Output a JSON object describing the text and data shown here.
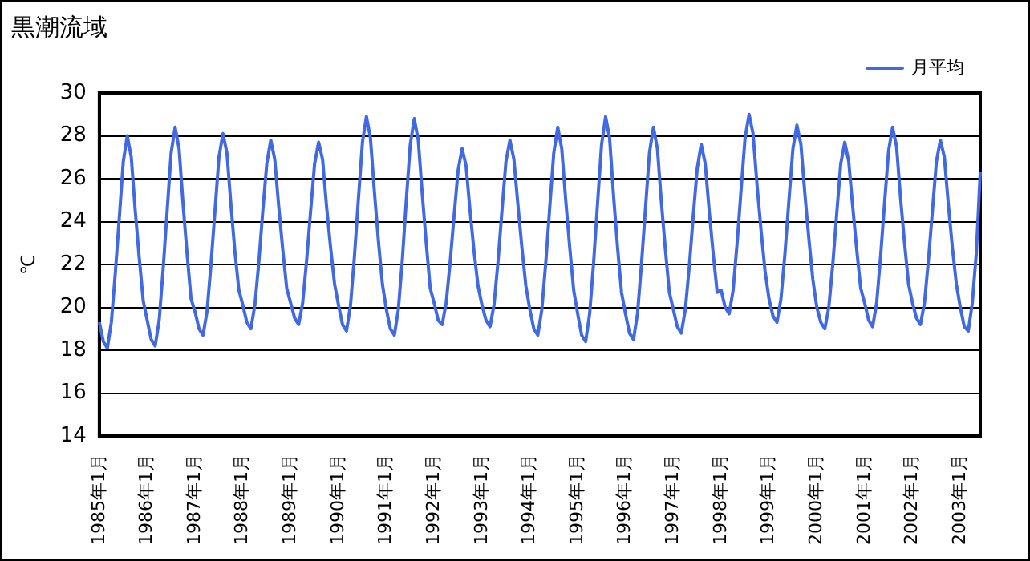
{
  "chart_data": {
    "type": "line",
    "title": "黒潮流域",
    "ylabel": "℃",
    "categories": [
      "1985年1月",
      null,
      null,
      null,
      null,
      null,
      null,
      null,
      null,
      null,
      null,
      null,
      "1986年1月",
      null,
      null,
      null,
      null,
      null,
      null,
      null,
      null,
      null,
      null,
      null,
      "1987年1月",
      null,
      null,
      null,
      null,
      null,
      null,
      null,
      null,
      null,
      null,
      null,
      "1988年1月",
      null,
      null,
      null,
      null,
      null,
      null,
      null,
      null,
      null,
      null,
      null,
      "1989年1月",
      null,
      null,
      null,
      null,
      null,
      null,
      null,
      null,
      null,
      null,
      null,
      "1990年1月",
      null,
      null,
      null,
      null,
      null,
      null,
      null,
      null,
      null,
      null,
      null,
      "1991年1月",
      null,
      null,
      null,
      null,
      null,
      null,
      null,
      null,
      null,
      null,
      null,
      "1992年1月",
      null,
      null,
      null,
      null,
      null,
      null,
      null,
      null,
      null,
      null,
      null,
      "1993年1月",
      null,
      null,
      null,
      null,
      null,
      null,
      null,
      null,
      null,
      null,
      null,
      "1994年1月",
      null,
      null,
      null,
      null,
      null,
      null,
      null,
      null,
      null,
      null,
      null,
      "1995年1月",
      null,
      null,
      null,
      null,
      null,
      null,
      null,
      null,
      null,
      null,
      null,
      "1996年1月",
      null,
      null,
      null,
      null,
      null,
      null,
      null,
      null,
      null,
      null,
      null,
      "1997年1月",
      null,
      null,
      null,
      null,
      null,
      null,
      null,
      null,
      null,
      null,
      null,
      "1998年1月",
      null,
      null,
      null,
      null,
      null,
      null,
      null,
      null,
      null,
      null,
      null,
      "1999年1月",
      null,
      null,
      null,
      null,
      null,
      null,
      null,
      null,
      null,
      null,
      null,
      "2000年1月",
      null,
      null,
      null,
      null,
      null,
      null,
      null,
      null,
      null,
      null,
      null,
      "2001年1月",
      null,
      null,
      null,
      null,
      null,
      null,
      null,
      null,
      null,
      null,
      null,
      "2002年1月",
      null,
      null,
      null,
      null,
      null,
      null,
      null,
      null,
      null,
      null,
      null,
      "2003年1月",
      null,
      null,
      null,
      null,
      null
    ],
    "series": [
      {
        "name": "月平均",
        "color": "#4169e1",
        "values": [
          19.3,
          18.4,
          18.1,
          19.3,
          21.6,
          24.2,
          26.8,
          28.0,
          27.0,
          24.5,
          22.3,
          20.3,
          19.4,
          18.5,
          18.2,
          19.4,
          21.8,
          24.5,
          27.2,
          28.4,
          27.4,
          24.8,
          22.5,
          20.4,
          19.8,
          19.0,
          18.7,
          19.8,
          22.0,
          24.5,
          27.0,
          28.1,
          27.2,
          24.8,
          22.6,
          20.8,
          20.1,
          19.3,
          19.0,
          20.1,
          22.1,
          24.5,
          26.7,
          27.8,
          26.9,
          24.7,
          22.7,
          20.9,
          20.2,
          19.5,
          19.2,
          20.2,
          22.2,
          24.5,
          26.7,
          27.7,
          26.9,
          24.7,
          22.8,
          21.1,
          20.1,
          19.2,
          18.9,
          20.1,
          22.4,
          25.1,
          27.7,
          28.9,
          27.9,
          25.4,
          23.1,
          21.1,
          19.9,
          19.0,
          18.7,
          19.9,
          22.2,
          25.0,
          27.6,
          28.8,
          27.8,
          25.3,
          23.0,
          20.9,
          20.2,
          19.4,
          19.2,
          20.2,
          22.1,
          24.3,
          26.4,
          27.4,
          26.6,
          24.5,
          22.6,
          21.0,
          20.1,
          19.4,
          19.1,
          20.1,
          22.1,
          24.5,
          26.8,
          27.8,
          26.9,
          24.8,
          22.8,
          21.0,
          19.9,
          19.0,
          18.7,
          19.9,
          22.1,
          24.7,
          27.2,
          28.4,
          27.4,
          25.0,
          22.8,
          20.8,
          19.7,
          18.7,
          18.4,
          19.7,
          22.1,
          24.9,
          27.6,
          28.9,
          27.9,
          25.2,
          22.8,
          20.7,
          19.7,
          18.8,
          18.5,
          19.7,
          22.0,
          24.6,
          27.2,
          28.4,
          27.4,
          24.9,
          22.7,
          20.7,
          19.9,
          19.1,
          18.8,
          19.9,
          21.9,
          24.3,
          26.5,
          27.6,
          26.7,
          24.5,
          22.5,
          20.7,
          20.8,
          20.0,
          19.7,
          20.8,
          23.0,
          25.5,
          27.9,
          29.0,
          28.1,
          25.7,
          23.6,
          21.7,
          20.4,
          19.6,
          19.3,
          20.4,
          22.5,
          25.0,
          27.4,
          28.5,
          27.6,
          25.3,
          23.2,
          21.3,
          20.0,
          19.3,
          19.0,
          20.0,
          22.0,
          24.4,
          26.7,
          27.7,
          26.8,
          24.7,
          22.7,
          20.9,
          20.2,
          19.4,
          19.1,
          20.2,
          22.4,
          24.9,
          27.3,
          28.4,
          27.5,
          25.1,
          23.0,
          21.1,
          20.2,
          19.5,
          19.2,
          20.2,
          22.2,
          24.5,
          26.8,
          27.8,
          27.0,
          24.8,
          22.8,
          21.1,
          20.0,
          19.1,
          18.9,
          20.2,
          22.5,
          26.3
        ]
      }
    ],
    "ylim": [
      14,
      30
    ],
    "yticks": [
      14,
      16,
      18,
      20,
      22,
      24,
      26,
      28,
      30
    ],
    "grid": "y",
    "legend": "top right",
    "marker": "none",
    "line_style": "solid"
  }
}
